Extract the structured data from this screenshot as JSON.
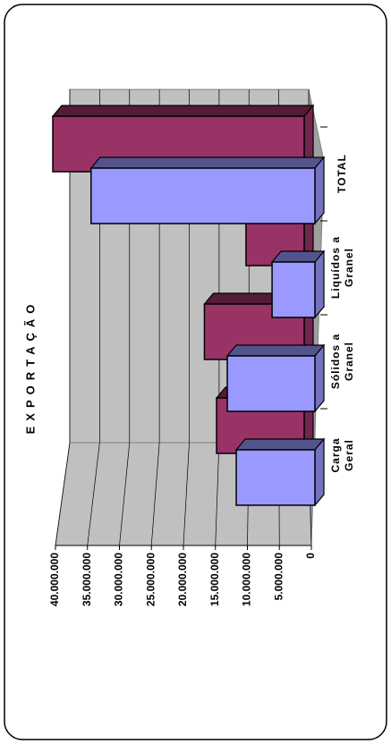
{
  "chart_data": {
    "type": "bar3d",
    "title": "EXPORTAÇÃO",
    "categories": [
      "Carga Geral",
      "Sólidos a Granel",
      "Liquídos a Granel",
      "TOTAL"
    ],
    "series": [
      {
        "color": "#993366",
        "values": [
          13700000,
          15600000,
          9100000,
          39300000
        ]
      },
      {
        "color": "#9999ff",
        "values": [
          12300000,
          13700000,
          6700000,
          35000000
        ]
      }
    ],
    "ylim": [
      0,
      40000000
    ],
    "yticks": [
      {
        "value": 0,
        "label": "0"
      },
      {
        "value": 5000000,
        "label": "5.000.000"
      },
      {
        "value": 10000000,
        "label": "10.000.000"
      },
      {
        "value": 15000000,
        "label": "15.000.000"
      },
      {
        "value": 20000000,
        "label": "20.000.000"
      },
      {
        "value": 25000000,
        "label": "25.000.000"
      },
      {
        "value": 30000000,
        "label": "30.000.000"
      },
      {
        "value": 35000000,
        "label": "35.000.000"
      },
      {
        "value": 40000000,
        "label": "40.000.000"
      }
    ],
    "grid": true
  }
}
